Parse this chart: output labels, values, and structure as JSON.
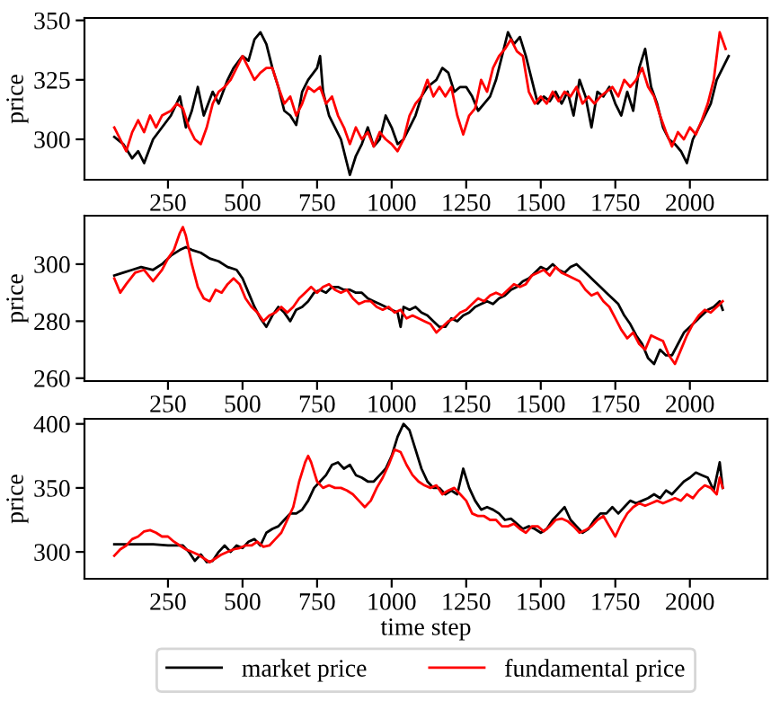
{
  "chart_data": [
    {
      "type": "line",
      "ylabel": "price",
      "xlim": [
        -30,
        2260
      ],
      "xticks": [
        250,
        500,
        750,
        1000,
        1250,
        1500,
        1750,
        2000
      ],
      "ylim": [
        283,
        351
      ],
      "yticks": [
        300,
        325,
        350
      ],
      "grid": false,
      "legend": false,
      "series": [
        {
          "color": "#000000",
          "x": [
            70,
            100,
            130,
            150,
            170,
            200,
            230,
            260,
            290,
            310,
            330,
            350,
            370,
            400,
            420,
            450,
            470,
            500,
            520,
            540,
            560,
            580,
            600,
            620,
            640,
            660,
            680,
            700,
            720,
            750,
            760,
            770,
            790,
            810,
            830,
            850,
            860,
            880,
            900,
            920,
            940,
            960,
            980,
            1000,
            1020,
            1040,
            1060,
            1080,
            1100,
            1120,
            1150,
            1170,
            1190,
            1210,
            1230,
            1250,
            1270,
            1290,
            1310,
            1330,
            1350,
            1370,
            1390,
            1410,
            1430,
            1450,
            1470,
            1490,
            1510,
            1530,
            1550,
            1570,
            1590,
            1610,
            1630,
            1650,
            1670,
            1690,
            1710,
            1730,
            1750,
            1770,
            1790,
            1810,
            1830,
            1850,
            1870,
            1890,
            1910,
            1930,
            1950,
            1970,
            1990,
            2010,
            2030,
            2050,
            2070,
            2090,
            2110,
            2130
          ],
          "values": [
            301,
            298,
            292,
            295,
            290,
            300,
            305,
            310,
            318,
            305,
            312,
            322,
            310,
            320,
            315,
            325,
            330,
            335,
            333,
            342,
            345,
            340,
            330,
            322,
            312,
            310,
            306,
            320,
            325,
            330,
            335,
            320,
            310,
            305,
            300,
            290,
            285,
            293,
            298,
            305,
            297,
            300,
            310,
            305,
            298,
            300,
            305,
            310,
            318,
            322,
            325,
            330,
            328,
            320,
            322,
            322,
            318,
            312,
            315,
            318,
            325,
            335,
            345,
            340,
            343,
            335,
            325,
            315,
            318,
            316,
            320,
            315,
            320,
            310,
            325,
            318,
            305,
            320,
            318,
            322,
            315,
            310,
            320,
            312,
            330,
            338,
            322,
            315,
            305,
            300,
            298,
            295,
            290,
            300,
            305,
            310,
            315,
            325,
            330,
            335
          ]
        },
        {
          "color": "#ff0000",
          "x": [
            70,
            90,
            110,
            130,
            150,
            170,
            190,
            210,
            230,
            260,
            280,
            300,
            320,
            340,
            360,
            380,
            400,
            420,
            440,
            460,
            480,
            500,
            520,
            540,
            560,
            580,
            600,
            620,
            640,
            660,
            680,
            700,
            720,
            740,
            760,
            780,
            800,
            820,
            840,
            860,
            880,
            900,
            920,
            940,
            960,
            980,
            1000,
            1020,
            1040,
            1060,
            1080,
            1100,
            1120,
            1140,
            1160,
            1180,
            1200,
            1220,
            1240,
            1260,
            1280,
            1300,
            1320,
            1340,
            1360,
            1380,
            1400,
            1420,
            1440,
            1460,
            1480,
            1500,
            1520,
            1540,
            1560,
            1580,
            1600,
            1620,
            1640,
            1660,
            1680,
            1700,
            1720,
            1740,
            1760,
            1780,
            1800,
            1820,
            1840,
            1860,
            1880,
            1900,
            1920,
            1940,
            1960,
            1980,
            2000,
            2020,
            2040,
            2060,
            2080,
            2100,
            2120
          ],
          "values": [
            305,
            300,
            295,
            303,
            308,
            303,
            310,
            305,
            310,
            312,
            315,
            313,
            305,
            300,
            298,
            305,
            315,
            320,
            322,
            325,
            330,
            335,
            330,
            325,
            328,
            330,
            330,
            322,
            315,
            318,
            310,
            315,
            322,
            320,
            322,
            315,
            318,
            310,
            305,
            298,
            305,
            300,
            303,
            297,
            303,
            300,
            298,
            295,
            300,
            310,
            315,
            318,
            325,
            318,
            322,
            318,
            322,
            310,
            302,
            310,
            313,
            325,
            320,
            330,
            335,
            338,
            342,
            337,
            335,
            320,
            315,
            318,
            315,
            320,
            316,
            320,
            318,
            322,
            315,
            318,
            315,
            318,
            320,
            322,
            318,
            325,
            322,
            325,
            330,
            322,
            318,
            310,
            303,
            297,
            303,
            300,
            305,
            302,
            308,
            315,
            325,
            345,
            338
          ]
        }
      ]
    },
    {
      "type": "line",
      "ylabel": "price",
      "xlim": [
        -30,
        2260
      ],
      "xticks": [
        250,
        500,
        750,
        1000,
        1250,
        1500,
        1750,
        2000
      ],
      "ylim": [
        259,
        317
      ],
      "yticks": [
        260,
        280,
        300
      ],
      "grid": false,
      "legend": false,
      "series": [
        {
          "color": "#000000",
          "x": [
            70,
            100,
            130,
            160,
            200,
            230,
            260,
            290,
            310,
            330,
            360,
            390,
            420,
            450,
            480,
            500,
            520,
            540,
            560,
            580,
            600,
            620,
            640,
            660,
            680,
            700,
            720,
            740,
            760,
            780,
            800,
            820,
            840,
            860,
            880,
            900,
            920,
            940,
            960,
            980,
            1000,
            1020,
            1030,
            1040,
            1060,
            1080,
            1100,
            1120,
            1140,
            1160,
            1180,
            1200,
            1220,
            1240,
            1260,
            1280,
            1300,
            1320,
            1340,
            1360,
            1380,
            1400,
            1420,
            1440,
            1460,
            1480,
            1500,
            1520,
            1540,
            1560,
            1580,
            1600,
            1620,
            1640,
            1660,
            1680,
            1700,
            1720,
            1740,
            1760,
            1780,
            1800,
            1820,
            1840,
            1860,
            1880,
            1900,
            1920,
            1940,
            1960,
            1980,
            2000,
            2020,
            2040,
            2060,
            2080,
            2100,
            2110
          ],
          "values": [
            296,
            297,
            298,
            299,
            298,
            300,
            303,
            305,
            306,
            305,
            304,
            302,
            301,
            299,
            298,
            295,
            290,
            285,
            281,
            278,
            282,
            285,
            283,
            280,
            284,
            285,
            287,
            290,
            291,
            290,
            292,
            292,
            291,
            291,
            290,
            290,
            288,
            287,
            286,
            285,
            284,
            283,
            278,
            285,
            284,
            285,
            283,
            282,
            280,
            278,
            278,
            281,
            280,
            282,
            283,
            285,
            286,
            287,
            286,
            288,
            289,
            291,
            292,
            294,
            295,
            297,
            299,
            298,
            300,
            298,
            297,
            299,
            300,
            298,
            296,
            294,
            292,
            290,
            288,
            286,
            282,
            279,
            275,
            272,
            267,
            265,
            270,
            268,
            268,
            272,
            276,
            278,
            280,
            282,
            284,
            285,
            287,
            284
          ]
        },
        {
          "color": "#ff0000",
          "x": [
            70,
            90,
            110,
            140,
            170,
            200,
            230,
            250,
            270,
            290,
            300,
            310,
            330,
            350,
            370,
            390,
            410,
            430,
            450,
            470,
            490,
            510,
            530,
            550,
            570,
            590,
            610,
            630,
            650,
            670,
            690,
            710,
            730,
            750,
            770,
            790,
            810,
            830,
            850,
            870,
            890,
            910,
            930,
            950,
            970,
            990,
            1010,
            1030,
            1050,
            1070,
            1090,
            1110,
            1130,
            1150,
            1170,
            1190,
            1210,
            1230,
            1250,
            1270,
            1290,
            1310,
            1330,
            1350,
            1370,
            1390,
            1410,
            1430,
            1450,
            1470,
            1490,
            1510,
            1530,
            1550,
            1570,
            1590,
            1610,
            1630,
            1650,
            1670,
            1690,
            1710,
            1730,
            1750,
            1770,
            1790,
            1810,
            1830,
            1850,
            1870,
            1890,
            1910,
            1930,
            1950,
            1970,
            1990,
            2010,
            2030,
            2050,
            2070,
            2090,
            2110
          ],
          "values": [
            295,
            290,
            293,
            297,
            298,
            294,
            298,
            302,
            305,
            311,
            313,
            310,
            300,
            292,
            288,
            287,
            291,
            290,
            293,
            295,
            293,
            288,
            285,
            283,
            280,
            282,
            283,
            285,
            283,
            285,
            288,
            290,
            292,
            290,
            292,
            293,
            291,
            290,
            291,
            288,
            286,
            287,
            287,
            285,
            284,
            285,
            283,
            284,
            281,
            282,
            281,
            280,
            279,
            276,
            278,
            280,
            281,
            283,
            284,
            286,
            288,
            287,
            289,
            290,
            289,
            291,
            293,
            292,
            293,
            296,
            297,
            298,
            296,
            299,
            297,
            296,
            295,
            294,
            291,
            289,
            290,
            287,
            285,
            281,
            277,
            274,
            276,
            272,
            270,
            275,
            274,
            273,
            268,
            265,
            270,
            275,
            279,
            282,
            284,
            283,
            285,
            287
          ]
        }
      ]
    },
    {
      "type": "line",
      "ylabel": "price",
      "xlabel": "time step",
      "xlim": [
        -30,
        2260
      ],
      "xticks": [
        250,
        500,
        750,
        1000,
        1250,
        1500,
        1750,
        2000
      ],
      "ylim": [
        279,
        404
      ],
      "yticks": [
        300,
        350,
        400
      ],
      "grid": false,
      "legend": "bottom",
      "series": [
        {
          "name": "market price",
          "color": "#000000",
          "x": [
            70,
            100,
            150,
            200,
            250,
            300,
            320,
            340,
            360,
            380,
            400,
            420,
            440,
            460,
            480,
            500,
            520,
            540,
            560,
            580,
            600,
            620,
            640,
            660,
            680,
            700,
            720,
            740,
            760,
            780,
            800,
            820,
            840,
            860,
            880,
            900,
            920,
            940,
            960,
            980,
            1000,
            1020,
            1040,
            1060,
            1080,
            1100,
            1120,
            1140,
            1160,
            1180,
            1200,
            1220,
            1240,
            1260,
            1280,
            1300,
            1320,
            1340,
            1360,
            1380,
            1400,
            1420,
            1440,
            1460,
            1480,
            1500,
            1520,
            1540,
            1560,
            1580,
            1600,
            1620,
            1640,
            1660,
            1680,
            1700,
            1720,
            1740,
            1760,
            1780,
            1800,
            1820,
            1840,
            1860,
            1880,
            1900,
            1920,
            1940,
            1960,
            1980,
            2000,
            2020,
            2040,
            2060,
            2080,
            2100,
            2110
          ],
          "values": [
            306,
            306,
            306,
            306,
            305,
            305,
            300,
            293,
            298,
            292,
            293,
            300,
            305,
            300,
            305,
            303,
            308,
            310,
            305,
            315,
            318,
            320,
            325,
            330,
            330,
            333,
            340,
            350,
            355,
            360,
            368,
            370,
            365,
            368,
            360,
            358,
            355,
            355,
            360,
            365,
            375,
            390,
            400,
            395,
            380,
            365,
            355,
            350,
            350,
            345,
            348,
            345,
            365,
            350,
            340,
            333,
            335,
            333,
            330,
            325,
            326,
            322,
            318,
            320,
            318,
            315,
            318,
            325,
            330,
            335,
            325,
            320,
            315,
            318,
            325,
            330,
            330,
            335,
            330,
            335,
            340,
            338,
            340,
            342,
            345,
            342,
            348,
            345,
            350,
            355,
            358,
            362,
            360,
            358,
            348,
            370,
            350
          ]
        },
        {
          "name": "fundamental price",
          "color": "#ff0000",
          "x": [
            70,
            90,
            110,
            130,
            150,
            170,
            190,
            210,
            230,
            250,
            270,
            290,
            310,
            330,
            350,
            370,
            390,
            410,
            430,
            450,
            470,
            490,
            510,
            530,
            550,
            570,
            590,
            610,
            630,
            650,
            670,
            690,
            710,
            720,
            730,
            750,
            770,
            790,
            810,
            830,
            850,
            870,
            890,
            910,
            930,
            950,
            970,
            990,
            1010,
            1030,
            1050,
            1070,
            1090,
            1110,
            1130,
            1150,
            1170,
            1190,
            1210,
            1230,
            1250,
            1270,
            1290,
            1310,
            1330,
            1350,
            1370,
            1390,
            1410,
            1430,
            1450,
            1470,
            1490,
            1510,
            1530,
            1550,
            1570,
            1590,
            1610,
            1630,
            1650,
            1670,
            1690,
            1710,
            1730,
            1750,
            1770,
            1790,
            1810,
            1830,
            1850,
            1870,
            1890,
            1910,
            1930,
            1950,
            1970,
            1990,
            2010,
            2030,
            2050,
            2070,
            2090,
            2100,
            2110
          ],
          "values": [
            297,
            302,
            305,
            310,
            312,
            316,
            317,
            315,
            312,
            312,
            308,
            305,
            302,
            300,
            298,
            295,
            292,
            295,
            298,
            300,
            302,
            303,
            305,
            305,
            308,
            304,
            305,
            310,
            315,
            325,
            335,
            355,
            370,
            375,
            370,
            355,
            350,
            352,
            350,
            350,
            348,
            345,
            340,
            335,
            340,
            350,
            358,
            368,
            380,
            378,
            368,
            360,
            355,
            352,
            350,
            352,
            345,
            348,
            350,
            345,
            340,
            330,
            328,
            328,
            325,
            325,
            320,
            320,
            322,
            318,
            315,
            320,
            320,
            316,
            320,
            325,
            326,
            324,
            320,
            315,
            317,
            320,
            325,
            328,
            320,
            312,
            322,
            330,
            335,
            338,
            336,
            338,
            340,
            338,
            340,
            342,
            340,
            345,
            342,
            348,
            352,
            350,
            345,
            358,
            350
          ]
        }
      ]
    }
  ]
}
